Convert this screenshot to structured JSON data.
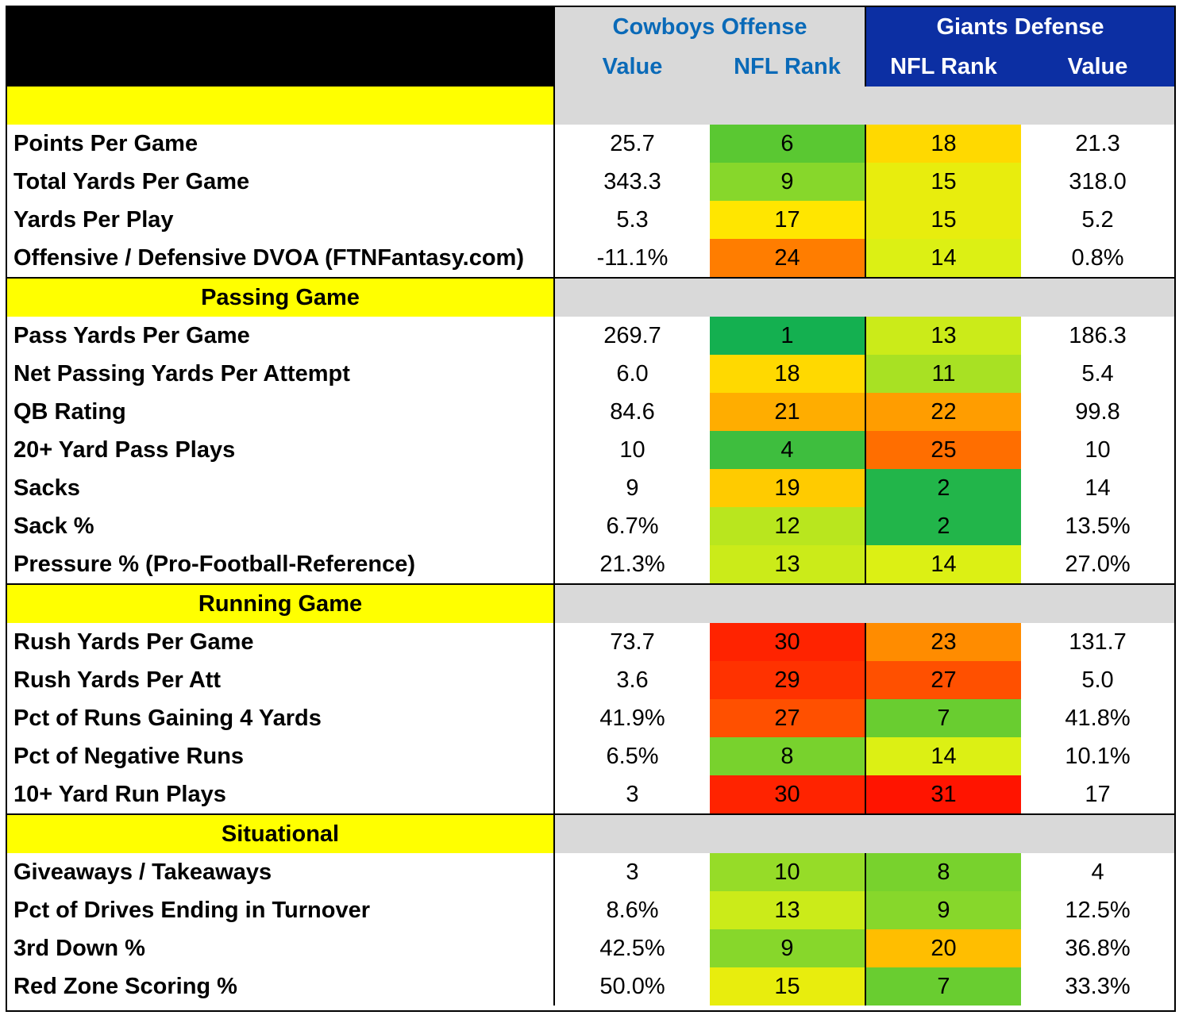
{
  "header": {
    "offense_team": "Cowboys Offense",
    "defense_team": "Giants Defense",
    "offense_cols": [
      "Value",
      "NFL Rank"
    ],
    "defense_cols": [
      "NFL Rank",
      "Value"
    ]
  },
  "colors": {
    "offense_header_text": "#0a6ab8",
    "offense_header_bg": "#d9d9d9",
    "defense_header_bg": "#0c2fa3",
    "section_bg": "#ffff00",
    "section_gray": "#d9d9d9"
  },
  "sections": [
    {
      "title": "",
      "rows": [
        {
          "label": "Points Per Game",
          "off_value": "25.7",
          "off_rank": "6",
          "def_rank": "18",
          "def_value": "21.3"
        },
        {
          "label": "Total Yards Per Game",
          "off_value": "343.3",
          "off_rank": "9",
          "def_rank": "15",
          "def_value": "318.0"
        },
        {
          "label": "Yards Per Play",
          "off_value": "5.3",
          "off_rank": "17",
          "def_rank": "15",
          "def_value": "5.2"
        },
        {
          "label": "Offensive / Defensive DVOA (FTNFantasy.com)",
          "off_value": "-11.1%",
          "off_rank": "24",
          "def_rank": "14",
          "def_value": "0.8%"
        }
      ]
    },
    {
      "title": "Passing Game",
      "rows": [
        {
          "label": "Pass Yards Per Game",
          "off_value": "269.7",
          "off_rank": "1",
          "def_rank": "13",
          "def_value": "186.3"
        },
        {
          "label": "Net Passing Yards Per Attempt",
          "off_value": "6.0",
          "off_rank": "18",
          "def_rank": "11",
          "def_value": "5.4"
        },
        {
          "label": "QB Rating",
          "off_value": "84.6",
          "off_rank": "21",
          "def_rank": "22",
          "def_value": "99.8"
        },
        {
          "label": "20+ Yard Pass Plays",
          "off_value": "10",
          "off_rank": "4",
          "def_rank": "25",
          "def_value": "10"
        },
        {
          "label": "Sacks",
          "off_value": "9",
          "off_rank": "19",
          "def_rank": "2",
          "def_value": "14"
        },
        {
          "label": "Sack %",
          "off_value": "6.7%",
          "off_rank": "12",
          "def_rank": "2",
          "def_value": "13.5%"
        },
        {
          "label": "Pressure % (Pro-Football-Reference)",
          "off_value": "21.3%",
          "off_rank": "13",
          "def_rank": "14",
          "def_value": "27.0%"
        }
      ]
    },
    {
      "title": "Running Game",
      "rows": [
        {
          "label": "Rush Yards Per Game",
          "off_value": "73.7",
          "off_rank": "30",
          "def_rank": "23",
          "def_value": "131.7"
        },
        {
          "label": "Rush Yards Per Att",
          "off_value": "3.6",
          "off_rank": "29",
          "def_rank": "27",
          "def_value": "5.0"
        },
        {
          "label": "Pct of Runs Gaining 4 Yards",
          "off_value": "41.9%",
          "off_rank": "27",
          "def_rank": "7",
          "def_value": "41.8%"
        },
        {
          "label": "Pct of Negative Runs",
          "off_value": "6.5%",
          "off_rank": "8",
          "def_rank": "14",
          "def_value": "10.1%"
        },
        {
          "label": "10+ Yard Run Plays",
          "off_value": "3",
          "off_rank": "30",
          "def_rank": "31",
          "def_value": "17"
        }
      ]
    },
    {
      "title": "Situational",
      "rows": [
        {
          "label": "Giveaways / Takeaways",
          "off_value": "3",
          "off_rank": "10",
          "def_rank": "8",
          "def_value": "4"
        },
        {
          "label": "Pct of Drives Ending in Turnover",
          "off_value": "8.6%",
          "off_rank": "13",
          "def_rank": "9",
          "def_value": "12.5%"
        },
        {
          "label": "3rd Down %",
          "off_value": "42.5%",
          "off_rank": "9",
          "def_rank": "20",
          "def_value": "36.8%"
        },
        {
          "label": "Red Zone Scoring %",
          "off_value": "50.0%",
          "off_rank": "15",
          "def_rank": "7",
          "def_value": "33.3%"
        }
      ]
    }
  ]
}
